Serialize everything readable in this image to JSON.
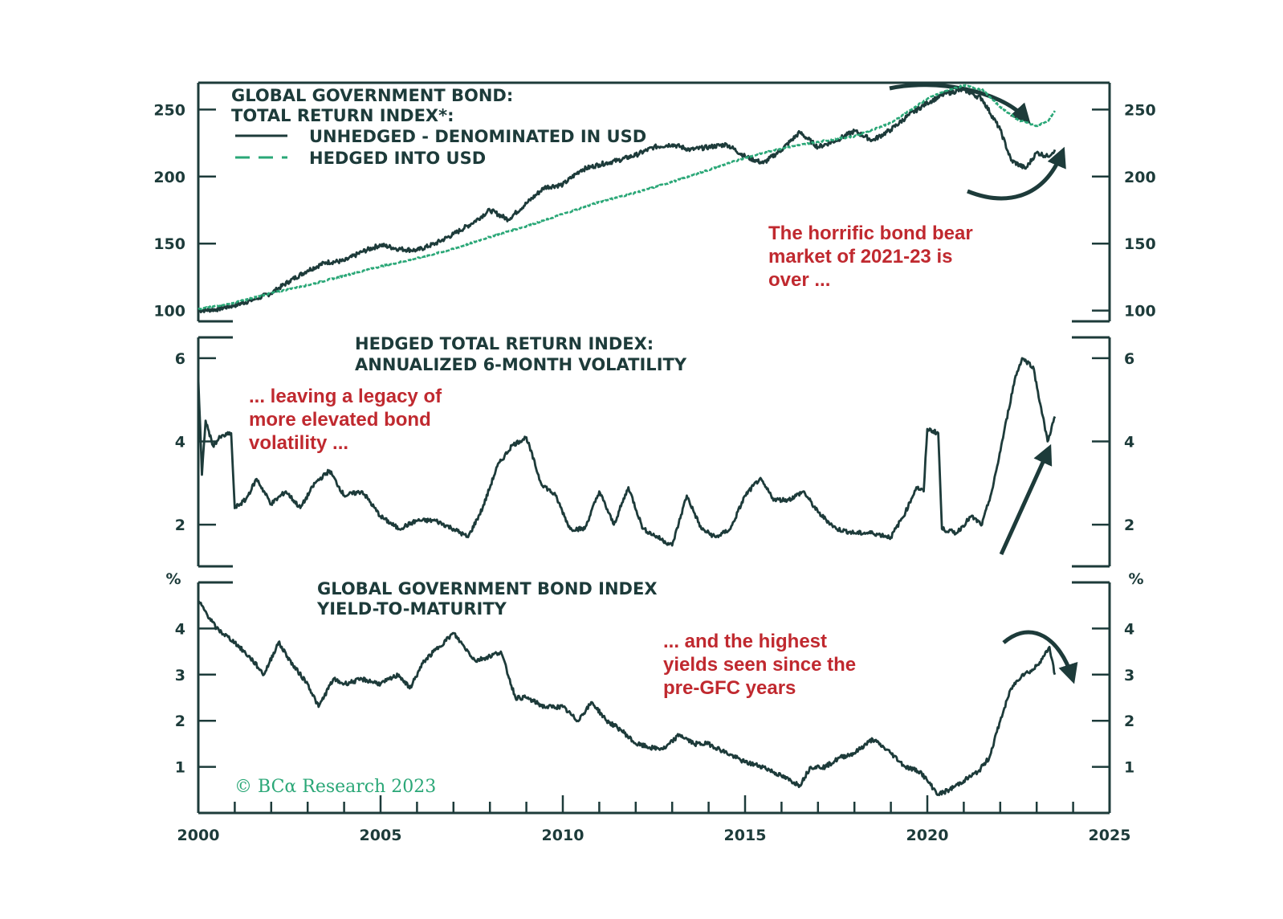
{
  "chart_data": [
    {
      "type": "line",
      "title_lines": [
        "GLOBAL GOVERNMENT BOND:",
        "TOTAL RETURN INDEX*:"
      ],
      "x_range": [
        2000,
        2025
      ],
      "ylim": [
        92,
        270
      ],
      "y_ticks": [
        100,
        150,
        200,
        250
      ],
      "y_tick_labels": [
        "100",
        "150",
        "200",
        "250"
      ],
      "series": [
        {
          "name": "UNHEDGED - DENOMINATED IN USD",
          "style": "solid",
          "color": "#1d3b3a",
          "points": [
            [
              2000.0,
              100
            ],
            [
              2000.5,
              101
            ],
            [
              2001.0,
              104
            ],
            [
              2001.5,
              108
            ],
            [
              2002.0,
              113
            ],
            [
              2002.5,
              122
            ],
            [
              2003.0,
              130
            ],
            [
              2003.5,
              136
            ],
            [
              2004.0,
              137
            ],
            [
              2004.5,
              144
            ],
            [
              2005.0,
              149
            ],
            [
              2005.5,
              146
            ],
            [
              2006.0,
              145
            ],
            [
              2006.5,
              150
            ],
            [
              2007.0,
              157
            ],
            [
              2007.5,
              165
            ],
            [
              2008.0,
              175
            ],
            [
              2008.5,
              168
            ],
            [
              2009.0,
              180
            ],
            [
              2009.5,
              192
            ],
            [
              2010.0,
              194
            ],
            [
              2010.5,
              205
            ],
            [
              2011.0,
              209
            ],
            [
              2011.5,
              212
            ],
            [
              2012.0,
              216
            ],
            [
              2012.5,
              222
            ],
            [
              2013.0,
              224
            ],
            [
              2013.5,
              220
            ],
            [
              2014.0,
              222
            ],
            [
              2014.5,
              224
            ],
            [
              2015.0,
              215
            ],
            [
              2015.5,
              210
            ],
            [
              2016.0,
              220
            ],
            [
              2016.5,
              233
            ],
            [
              2017.0,
              222
            ],
            [
              2017.5,
              227
            ],
            [
              2018.0,
              234
            ],
            [
              2018.5,
              227
            ],
            [
              2019.0,
              235
            ],
            [
              2019.5,
              246
            ],
            [
              2020.0,
              255
            ],
            [
              2020.5,
              262
            ],
            [
              2021.0,
              265
            ],
            [
              2021.5,
              258
            ],
            [
              2022.0,
              235
            ],
            [
              2022.3,
              212
            ],
            [
              2022.7,
              206
            ],
            [
              2023.0,
              218
            ],
            [
              2023.3,
              215
            ],
            [
              2023.5,
              220
            ]
          ]
        },
        {
          "name": "HEDGED INTO USD",
          "style": "dashed",
          "color": "#2aa777",
          "points": [
            [
              2000.0,
              101
            ],
            [
              2001.0,
              106
            ],
            [
              2002.0,
              113
            ],
            [
              2003.0,
              119
            ],
            [
              2004.0,
              126
            ],
            [
              2005.0,
              133
            ],
            [
              2006.0,
              139
            ],
            [
              2007.0,
              146
            ],
            [
              2008.0,
              155
            ],
            [
              2009.0,
              163
            ],
            [
              2010.0,
              172
            ],
            [
              2011.0,
              181
            ],
            [
              2012.0,
              188
            ],
            [
              2013.0,
              196
            ],
            [
              2014.0,
              205
            ],
            [
              2015.0,
              214
            ],
            [
              2016.0,
              221
            ],
            [
              2017.0,
              226
            ],
            [
              2018.0,
              230
            ],
            [
              2019.0,
              240
            ],
            [
              2019.5,
              249
            ],
            [
              2020.0,
              258
            ],
            [
              2020.5,
              264
            ],
            [
              2021.0,
              268
            ],
            [
              2021.5,
              265
            ],
            [
              2022.0,
              252
            ],
            [
              2022.5,
              242
            ],
            [
              2023.0,
              238
            ],
            [
              2023.3,
              241
            ],
            [
              2023.5,
              249
            ]
          ]
        }
      ],
      "annotation": [
        "The horrific bond bear",
        "market of 2021-23 is",
        "over ..."
      ]
    },
    {
      "type": "line",
      "title_lines": [
        "HEDGED TOTAL RETURN INDEX:",
        "ANNUALIZED 6-MONTH VOLATILITY"
      ],
      "x_range": [
        2000,
        2025
      ],
      "ylim": [
        1,
        6.5
      ],
      "y_ticks": [
        2,
        4,
        6
      ],
      "y_tick_labels": [
        "2",
        "4",
        "6"
      ],
      "series": [
        {
          "name": "Annualized 6-month volatility",
          "style": "solid",
          "color": "#1d3b3a",
          "points": [
            [
              2000.0,
              5.5
            ],
            [
              2000.1,
              3.2
            ],
            [
              2000.2,
              4.5
            ],
            [
              2000.4,
              3.9
            ],
            [
              2000.6,
              4.1
            ],
            [
              2000.9,
              4.2
            ],
            [
              2001.0,
              2.4
            ],
            [
              2001.3,
              2.6
            ],
            [
              2001.6,
              3.1
            ],
            [
              2002.0,
              2.5
            ],
            [
              2002.4,
              2.8
            ],
            [
              2002.8,
              2.4
            ],
            [
              2003.2,
              3.0
            ],
            [
              2003.6,
              3.3
            ],
            [
              2004.0,
              2.7
            ],
            [
              2004.5,
              2.8
            ],
            [
              2005.0,
              2.2
            ],
            [
              2005.5,
              1.9
            ],
            [
              2006.0,
              2.1
            ],
            [
              2006.5,
              2.1
            ],
            [
              2007.0,
              1.9
            ],
            [
              2007.4,
              1.7
            ],
            [
              2007.8,
              2.4
            ],
            [
              2008.2,
              3.4
            ],
            [
              2008.6,
              3.9
            ],
            [
              2009.0,
              4.1
            ],
            [
              2009.4,
              3.0
            ],
            [
              2009.8,
              2.7
            ],
            [
              2010.2,
              1.9
            ],
            [
              2010.6,
              1.9
            ],
            [
              2011.0,
              2.8
            ],
            [
              2011.4,
              2.0
            ],
            [
              2011.8,
              2.9
            ],
            [
              2012.2,
              1.9
            ],
            [
              2012.6,
              1.7
            ],
            [
              2013.0,
              1.5
            ],
            [
              2013.4,
              2.7
            ],
            [
              2013.8,
              1.9
            ],
            [
              2014.2,
              1.7
            ],
            [
              2014.6,
              1.9
            ],
            [
              2015.0,
              2.7
            ],
            [
              2015.4,
              3.1
            ],
            [
              2015.8,
              2.6
            ],
            [
              2016.2,
              2.6
            ],
            [
              2016.6,
              2.8
            ],
            [
              2017.0,
              2.3
            ],
            [
              2017.5,
              1.9
            ],
            [
              2018.0,
              1.8
            ],
            [
              2018.5,
              1.8
            ],
            [
              2019.0,
              1.7
            ],
            [
              2019.4,
              2.3
            ],
            [
              2019.7,
              2.9
            ],
            [
              2019.9,
              2.8
            ],
            [
              2020.0,
              4.3
            ],
            [
              2020.3,
              4.2
            ],
            [
              2020.4,
              1.9
            ],
            [
              2020.8,
              1.8
            ],
            [
              2021.2,
              2.2
            ],
            [
              2021.5,
              2.0
            ],
            [
              2021.8,
              2.9
            ],
            [
              2022.1,
              4.2
            ],
            [
              2022.4,
              5.5
            ],
            [
              2022.6,
              6.0
            ],
            [
              2022.9,
              5.8
            ],
            [
              2023.1,
              4.9
            ],
            [
              2023.3,
              4.0
            ],
            [
              2023.5,
              4.6
            ]
          ]
        }
      ],
      "annotation": [
        "... leaving a legacy of",
        "more elevated bond",
        "volatility ..."
      ]
    },
    {
      "type": "line",
      "title_lines": [
        "GLOBAL GOVERNMENT BOND INDEX",
        "YIELD-TO-MATURITY"
      ],
      "x_range": [
        2000,
        2025
      ],
      "ylim": [
        0,
        5
      ],
      "y_unit_label": "%",
      "y_ticks": [
        1,
        2,
        3,
        4
      ],
      "y_tick_labels": [
        "1",
        "2",
        "3",
        "4"
      ],
      "series": [
        {
          "name": "Yield-to-maturity",
          "style": "solid",
          "color": "#1d3b3a",
          "points": [
            [
              2000.0,
              4.6
            ],
            [
              2000.5,
              4.0
            ],
            [
              2001.0,
              3.7
            ],
            [
              2001.5,
              3.3
            ],
            [
              2001.8,
              3.0
            ],
            [
              2002.2,
              3.7
            ],
            [
              2002.6,
              3.2
            ],
            [
              2003.0,
              2.8
            ],
            [
              2003.3,
              2.3
            ],
            [
              2003.7,
              2.9
            ],
            [
              2004.0,
              2.8
            ],
            [
              2004.5,
              2.9
            ],
            [
              2005.0,
              2.8
            ],
            [
              2005.5,
              3.0
            ],
            [
              2005.8,
              2.7
            ],
            [
              2006.2,
              3.3
            ],
            [
              2006.6,
              3.6
            ],
            [
              2007.0,
              3.9
            ],
            [
              2007.3,
              3.6
            ],
            [
              2007.6,
              3.3
            ],
            [
              2008.0,
              3.4
            ],
            [
              2008.3,
              3.5
            ],
            [
              2008.7,
              2.5
            ],
            [
              2009.0,
              2.5
            ],
            [
              2009.5,
              2.3
            ],
            [
              2010.0,
              2.3
            ],
            [
              2010.4,
              2.0
            ],
            [
              2010.8,
              2.4
            ],
            [
              2011.2,
              2.0
            ],
            [
              2011.6,
              1.8
            ],
            [
              2012.0,
              1.5
            ],
            [
              2012.5,
              1.4
            ],
            [
              2012.8,
              1.4
            ],
            [
              2013.2,
              1.7
            ],
            [
              2013.6,
              1.5
            ],
            [
              2014.0,
              1.5
            ],
            [
              2014.5,
              1.3
            ],
            [
              2015.0,
              1.1
            ],
            [
              2015.5,
              1.0
            ],
            [
              2016.0,
              0.8
            ],
            [
              2016.5,
              0.6
            ],
            [
              2016.8,
              1.0
            ],
            [
              2017.2,
              1.0
            ],
            [
              2017.6,
              1.2
            ],
            [
              2018.0,
              1.3
            ],
            [
              2018.5,
              1.6
            ],
            [
              2019.0,
              1.3
            ],
            [
              2019.4,
              1.0
            ],
            [
              2019.8,
              0.9
            ],
            [
              2020.0,
              0.7
            ],
            [
              2020.3,
              0.4
            ],
            [
              2020.6,
              0.5
            ],
            [
              2021.0,
              0.7
            ],
            [
              2021.4,
              0.9
            ],
            [
              2021.7,
              1.2
            ],
            [
              2022.0,
              2.0
            ],
            [
              2022.3,
              2.7
            ],
            [
              2022.6,
              3.0
            ],
            [
              2022.9,
              3.1
            ],
            [
              2023.2,
              3.4
            ],
            [
              2023.35,
              3.6
            ],
            [
              2023.5,
              3.0
            ]
          ]
        }
      ],
      "annotation": [
        "... and the highest",
        "yields seen since the",
        "pre-GFC years"
      ]
    }
  ],
  "shared": {
    "x_ticks": [
      2000,
      2005,
      2010,
      2015,
      2020,
      2025
    ],
    "x_tick_labels": [
      "2000",
      "2005",
      "2010",
      "2015",
      "2020",
      "2025"
    ],
    "legend": {
      "unhedged_label": "UNHEDGED - DENOMINATED IN USD",
      "hedged_label": "HEDGED INTO USD"
    },
    "credit": "© BCα Research 2023",
    "colors": {
      "frame": "#1d3b3a",
      "unhedged": "#1d3b3a",
      "hedged": "#2aa777",
      "annotation": "#c0292f",
      "credit": "#2aa777"
    }
  }
}
